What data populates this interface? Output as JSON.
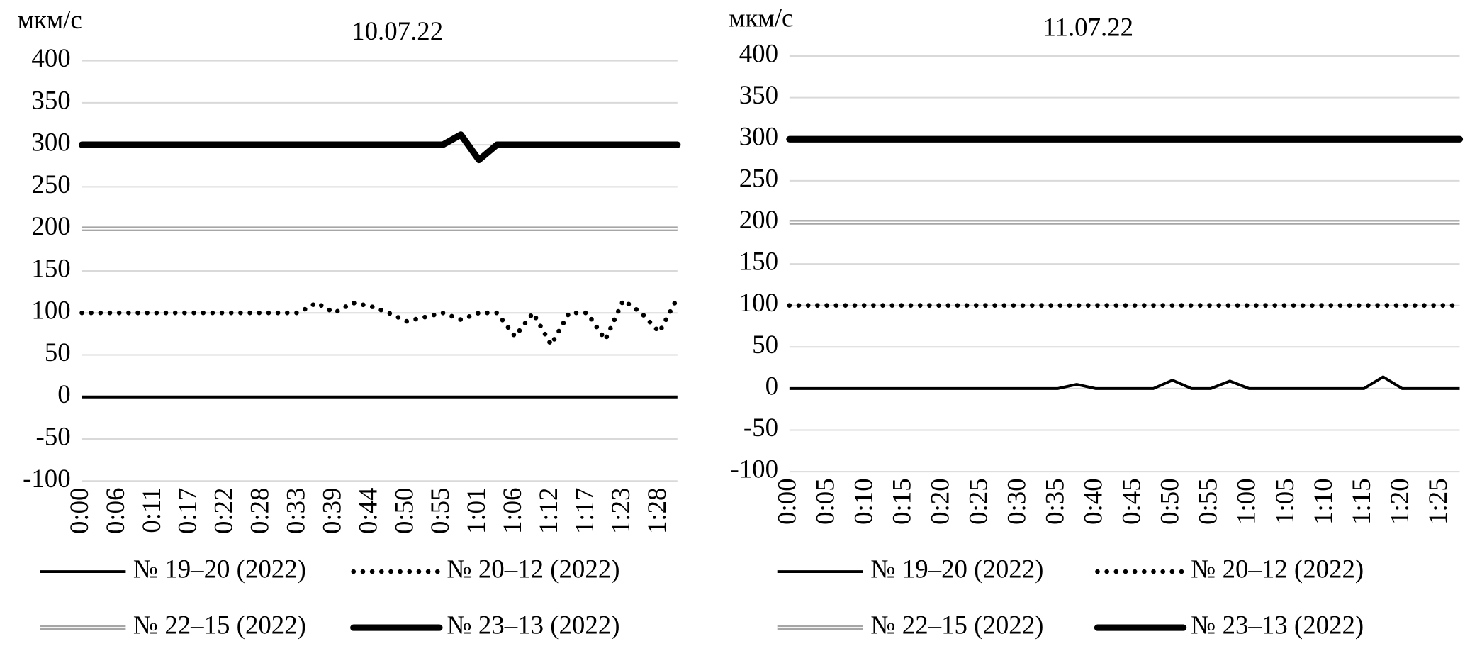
{
  "chart_data": [
    {
      "type": "line",
      "title": "10.07.22",
      "y_label": "мкм/с",
      "categories": [
        "0:00",
        null,
        "0:06",
        null,
        "0:11",
        null,
        "0:17",
        null,
        "0:22",
        null,
        "0:28",
        null,
        "0:33",
        null,
        "0:39",
        null,
        "0:44",
        null,
        "0:50",
        null,
        "0:55",
        null,
        "1:01",
        null,
        "1:06",
        null,
        "1:12",
        null,
        "1:17",
        null,
        "1:23",
        null,
        "1:28",
        null
      ],
      "series": [
        {
          "name": "№ 19–20 (2022)",
          "color": "#000000",
          "line_style": "solid",
          "values": [
            0,
            0,
            0,
            0,
            0,
            0,
            0,
            0,
            0,
            0,
            0,
            0,
            0,
            0,
            0,
            0,
            0,
            0,
            0,
            0,
            0,
            0,
            0,
            0,
            0,
            0,
            0,
            0,
            0,
            0,
            0,
            0,
            0,
            0
          ]
        },
        {
          "name": "№ 20–12 (2022)",
          "color": "#000000",
          "line_style": "dotted",
          "values": [
            100,
            100,
            100,
            100,
            100,
            100,
            100,
            100,
            100,
            100,
            100,
            100,
            100,
            112,
            100,
            112,
            108,
            100,
            90,
            95,
            100,
            92,
            100,
            100,
            72,
            100,
            62,
            100,
            100,
            68,
            115,
            100,
            77,
            118
          ]
        },
        {
          "name": "№ 22–15 (2022)",
          "color": "#a6a6a6",
          "line_style": "double",
          "values": [
            200,
            200,
            200,
            200,
            200,
            200,
            200,
            200,
            200,
            200,
            200,
            200,
            200,
            200,
            200,
            200,
            200,
            200,
            200,
            200,
            200,
            200,
            200,
            200,
            200,
            200,
            200,
            200,
            200,
            200,
            200,
            200,
            200,
            200
          ]
        },
        {
          "name": "№ 23–13 (2022)",
          "color": "#000000",
          "line_style": "thick",
          "values": [
            300,
            300,
            300,
            300,
            300,
            300,
            300,
            300,
            300,
            300,
            300,
            300,
            300,
            300,
            300,
            300,
            300,
            300,
            300,
            300,
            300,
            312,
            282,
            300,
            300,
            300,
            300,
            300,
            300,
            300,
            300,
            300,
            300,
            300
          ]
        }
      ],
      "ylim": [
        -100,
        400
      ],
      "yticks": [
        -100,
        -50,
        0,
        50,
        100,
        150,
        200,
        250,
        300,
        350,
        400
      ],
      "grid": true,
      "legend": "bottom"
    },
    {
      "type": "line",
      "title": "11.07.22",
      "y_label": "мкм/с",
      "categories": [
        "0:00",
        null,
        "0:05",
        null,
        "0:10",
        null,
        "0:15",
        null,
        "0:20",
        null,
        "0:25",
        null,
        "0:30",
        null,
        "0:35",
        null,
        "0:40",
        null,
        "0:45",
        null,
        "0:50",
        null,
        "0:55",
        null,
        "1:00",
        null,
        "1:05",
        null,
        "1:10",
        null,
        "1:15",
        null,
        "1:20",
        null,
        "1:25",
        null
      ],
      "series": [
        {
          "name": "№ 19–20 (2022)",
          "color": "#000000",
          "line_style": "solid",
          "values": [
            0,
            0,
            0,
            0,
            0,
            0,
            0,
            0,
            0,
            0,
            0,
            0,
            0,
            0,
            0,
            5,
            0,
            0,
            0,
            0,
            10,
            0,
            0,
            9,
            0,
            0,
            0,
            0,
            0,
            0,
            0,
            14,
            0,
            0,
            0,
            0
          ]
        },
        {
          "name": "№ 20–12 (2022)",
          "color": "#000000",
          "line_style": "dotted",
          "values": [
            100,
            100,
            100,
            100,
            100,
            100,
            100,
            100,
            100,
            100,
            100,
            100,
            100,
            100,
            100,
            100,
            100,
            100,
            100,
            100,
            100,
            100,
            100,
            100,
            100,
            100,
            100,
            100,
            100,
            100,
            100,
            100,
            100,
            100,
            100,
            100
          ]
        },
        {
          "name": "№ 22–15 (2022)",
          "color": "#a6a6a6",
          "line_style": "double",
          "values": [
            200,
            200,
            200,
            200,
            200,
            200,
            200,
            200,
            200,
            200,
            200,
            200,
            200,
            200,
            200,
            200,
            200,
            200,
            200,
            200,
            200,
            200,
            200,
            200,
            200,
            200,
            200,
            200,
            200,
            200,
            200,
            200,
            200,
            200,
            200,
            200
          ]
        },
        {
          "name": "№ 23–13 (2022)",
          "color": "#000000",
          "line_style": "thick",
          "values": [
            300,
            300,
            300,
            300,
            300,
            300,
            300,
            300,
            300,
            300,
            300,
            300,
            300,
            300,
            300,
            300,
            300,
            300,
            300,
            300,
            300,
            300,
            300,
            300,
            300,
            300,
            300,
            300,
            300,
            300,
            300,
            300,
            300,
            300,
            300,
            300
          ]
        }
      ],
      "ylim": [
        -100,
        400
      ],
      "yticks": [
        -100,
        -50,
        0,
        50,
        100,
        150,
        200,
        250,
        300,
        350,
        400
      ],
      "grid": true,
      "legend": "bottom"
    }
  ]
}
